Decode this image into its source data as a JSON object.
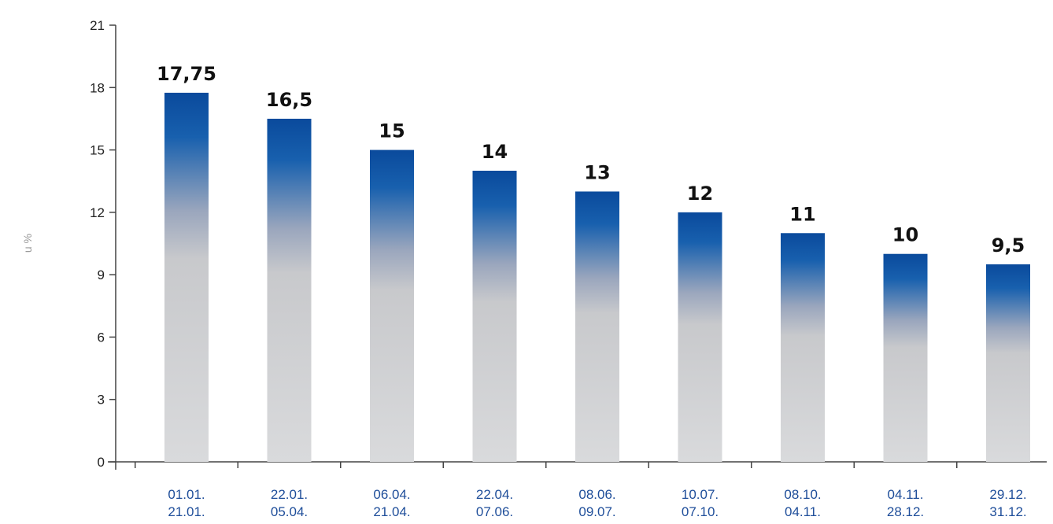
{
  "chart_data": {
    "type": "bar",
    "ylabel": "u %",
    "ylim": [
      0,
      21
    ],
    "yticks": [
      0,
      3,
      6,
      9,
      12,
      15,
      18,
      21
    ],
    "grid": false,
    "categories": [
      [
        "01.01.",
        "21.01."
      ],
      [
        "22.01.",
        "05.04."
      ],
      [
        "06.04.",
        "21.04."
      ],
      [
        "22.04.",
        "07.06."
      ],
      [
        "08.06.",
        "09.07."
      ],
      [
        "10.07.",
        "07.10."
      ],
      [
        "08.10.",
        "04.11."
      ],
      [
        "04.11.",
        "28.12."
      ],
      [
        "29.12.",
        "31.12."
      ]
    ],
    "values": [
      17.75,
      16.5,
      15,
      14,
      13,
      12,
      11,
      10,
      9.5
    ],
    "data_labels": [
      "17,75",
      "16,5",
      "15",
      "14",
      "13",
      "12",
      "11",
      "10",
      "9,5"
    ],
    "colors": {
      "bar_top": "#0a4a9c",
      "bar_mid": "#c8c9cc",
      "bar_bottom": "#d9dadc",
      "axis": "#444444"
    }
  }
}
